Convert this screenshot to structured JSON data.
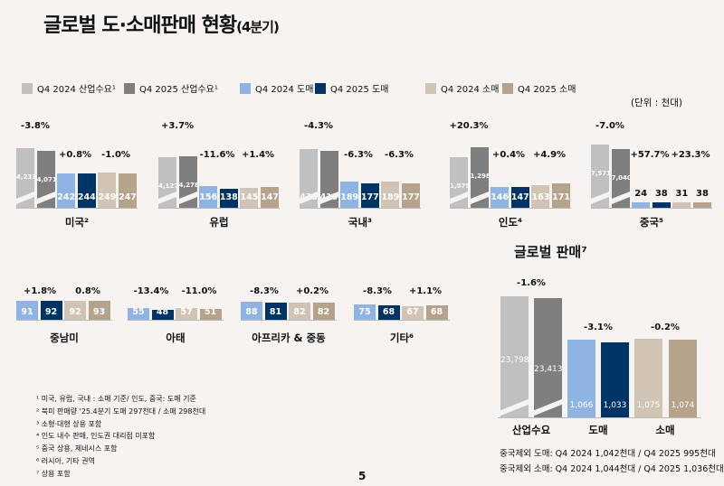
{
  "title": "글로벌 도·소매판매 현황",
  "title_suffix": "(4분기)",
  "unit": "(단위 : 천대)",
  "page_number": "5",
  "colors": {
    "q4_2024_industry": "#c0c0c0",
    "q4_2025_industry": "#7f7f7f",
    "q4_2024_wholesale": "#8fb4e3",
    "q4_2025_wholesale": "#003366",
    "q4_2024_retail": "#d2c4b4",
    "q4_2025_retail": "#b5a38c",
    "background": "#f6f3f1"
  },
  "legend": [
    {
      "label": "Q4 2024 산업수요¹",
      "color": "#c0c0c0"
    },
    {
      "label": "Q4 2025 산업수요¹",
      "color": "#7f7f7f"
    },
    {
      "label": "Q4 2024 도매",
      "color": "#8fb4e3"
    },
    {
      "label": "Q4 2025 도매",
      "color": "#003366"
    },
    {
      "label": "Q4 2024 소매",
      "color": "#d2c4b4"
    },
    {
      "label": "Q4 2025 소매",
      "color": "#b5a38c"
    }
  ],
  "chart_data": [
    {
      "type": "bar",
      "name": "regions-major",
      "categories": [
        "미국²",
        "유럽",
        "국내³",
        "인도⁴",
        "중국⁵"
      ],
      "series": [
        {
          "name": "Q4 2024 산업수요",
          "values": [
            4231,
            4127,
            438,
            1079,
            7571
          ]
        },
        {
          "name": "Q4 2025 산업수요",
          "values": [
            4071,
            4278,
            419,
            1298,
            7040
          ]
        },
        {
          "name": "Q4 2024 도매",
          "values": [
            242,
            156,
            189,
            146,
            24
          ]
        },
        {
          "name": "Q4 2025 도매",
          "values": [
            244,
            138,
            177,
            147,
            38
          ]
        },
        {
          "name": "Q4 2024 소매",
          "values": [
            249,
            145,
            189,
            163,
            31
          ]
        },
        {
          "name": "Q4 2025 소매",
          "values": [
            247,
            147,
            177,
            171,
            38
          ]
        }
      ],
      "changes": {
        "industry": [
          "-3.8%",
          "+3.7%",
          "-4.3%",
          "+20.3%",
          "-7.0%"
        ],
        "wholesale": [
          "+0.8%",
          "-11.6%",
          "-6.3%",
          "+0.4%",
          "+57.7%"
        ],
        "retail": [
          "-1.0%",
          "+1.4%",
          "-6.3%",
          "+4.9%",
          "+23.3%"
        ]
      }
    },
    {
      "type": "bar",
      "name": "regions-minor",
      "categories": [
        "중남미",
        "아태",
        "아프리카 & 중동",
        "기타⁶"
      ],
      "series": [
        {
          "name": "Q4 2024 도매",
          "values": [
            91,
            55,
            88,
            75
          ]
        },
        {
          "name": "Q4 2025 도매",
          "values": [
            92,
            48,
            81,
            68
          ]
        },
        {
          "name": "Q4 2024 소매",
          "values": [
            92,
            57,
            82,
            67
          ]
        },
        {
          "name": "Q4 2025 소매",
          "values": [
            93,
            51,
            82,
            68
          ]
        }
      ],
      "changes": {
        "wholesale": [
          "+1.8%",
          "-13.4%",
          "-8.3%",
          "-8.3%"
        ],
        "retail": [
          "0.8%",
          "-11.0%",
          "+0.2%",
          "+1.1%"
        ]
      }
    },
    {
      "type": "bar",
      "name": "global",
      "title": "글로벌 판매⁷",
      "categories": [
        "산업수요",
        "도매",
        "소매"
      ],
      "values_2024": [
        23798,
        1066,
        1075
      ],
      "values_2025": [
        23413,
        1033,
        1074
      ],
      "changes": [
        "-1.6%",
        "-3.1%",
        "-0.2%"
      ]
    }
  ],
  "global_notes": [
    "중국제외 도매: Q4 2024 1,042천대 / Q4 2025 995천대",
    "중국제외 소매: Q4 2024 1,044천대 / Q4 2025 1,036천대"
  ],
  "footnotes": [
    "¹ 미국, 유럽, 국내 : 소매 기준/ 인도, 중국: 도매 기준",
    "² 북미 판매량 '25.4분기 도매 297천대 / 소매 298천대",
    "³ 소형·대형 상용 포함",
    "⁴ 인도 내수 판매, 인도권 대리점 미포함",
    "⁵ 중국 상용, 제네시스 포함",
    "⁶ 러시아, 기타 권역",
    "⁷ 상용 포함"
  ]
}
